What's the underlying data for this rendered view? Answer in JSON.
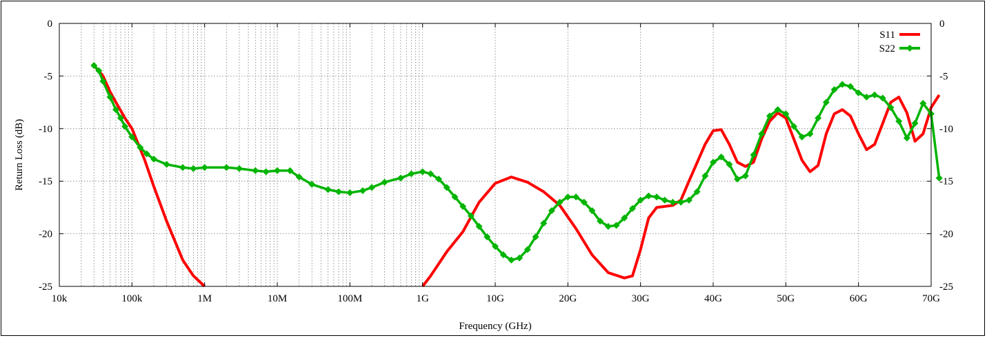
{
  "chart_data": {
    "type": "line",
    "xlabel": "Frequency (GHz)",
    "ylabel": "Return Loss (dB)",
    "ylim": [
      -25,
      0
    ],
    "yticks": [
      0,
      -5,
      -10,
      -15,
      -20,
      -25
    ],
    "x_scale": "log from 10k to 1G, then linear from 1G to 70G",
    "xticks": [
      "10k",
      "100k",
      "1M",
      "10M",
      "100M",
      "1G",
      "10G",
      "20G",
      "30G",
      "40G",
      "50G",
      "60G",
      "70G"
    ],
    "grid": true,
    "legend_position": "top-right",
    "colors": {
      "S11": "#ff0000",
      "S22": "#00b400"
    },
    "series": [
      {
        "name": "S11",
        "marker": "none",
        "segments": [
          [
            [
              "30k",
              -4.0
            ],
            [
              "40k",
              -5.0
            ],
            [
              "50k",
              -6.5
            ],
            [
              "60k",
              -7.5
            ],
            [
              "70k",
              -8.3
            ],
            [
              "80k",
              -9.0
            ],
            [
              "100k",
              -10.0
            ],
            [
              "150k",
              -13.0
            ],
            [
              "200k",
              -15.5
            ],
            [
              "300k",
              -18.8
            ],
            [
              "500k",
              -22.5
            ],
            [
              "700k",
              -24.0
            ],
            [
              "1M",
              -25.0
            ]
          ],
          [
            [
              "1G",
              -25.0
            ],
            [
              "2G",
              -24.0
            ],
            [
              "4G",
              -21.7
            ],
            [
              "6G",
              -19.8
            ],
            [
              "8G",
              -17.0
            ],
            [
              "10G",
              -15.2
            ],
            [
              "12G",
              -14.6
            ],
            [
              "14G",
              -15.1
            ],
            [
              "16G",
              -16.0
            ],
            [
              "18G",
              -17.3
            ],
            [
              "20G",
              -19.5
            ],
            [
              "22G",
              -22.0
            ],
            [
              "24G",
              -23.7
            ],
            [
              "26G",
              -24.2
            ],
            [
              "27G",
              -24.0
            ],
            [
              "28G",
              -21.5
            ],
            [
              "29G",
              -18.5
            ],
            [
              "30G",
              -17.5
            ],
            [
              "32G",
              -17.3
            ],
            [
              "33G",
              -16.8
            ],
            [
              "34G",
              -15.0
            ],
            [
              "36G",
              -11.5
            ],
            [
              "37G",
              -10.2
            ],
            [
              "38G",
              -10.1
            ],
            [
              "39G",
              -11.5
            ],
            [
              "40G",
              -13.2
            ],
            [
              "41G",
              -13.6
            ],
            [
              "42G",
              -13.2
            ],
            [
              "43G",
              -11.0
            ],
            [
              "44G",
              -9.3
            ],
            [
              "45G",
              -8.5
            ],
            [
              "46G",
              -9.0
            ],
            [
              "47G",
              -11.0
            ],
            [
              "48G",
              -13.0
            ],
            [
              "49G",
              -14.1
            ],
            [
              "50G",
              -13.5
            ],
            [
              "51G",
              -10.5
            ],
            [
              "52G",
              -8.6
            ],
            [
              "53G",
              -8.2
            ],
            [
              "54G",
              -8.8
            ],
            [
              "55G",
              -10.5
            ],
            [
              "56G",
              -12.0
            ],
            [
              "57G",
              -11.5
            ],
            [
              "58G",
              -9.5
            ],
            [
              "59G",
              -7.5
            ],
            [
              "60G",
              -7.0
            ],
            [
              "61G",
              -8.5
            ],
            [
              "62G",
              -11.2
            ],
            [
              "63G",
              -10.5
            ],
            [
              "64G",
              -8.0
            ],
            [
              "65G",
              -6.8
            ]
          ]
        ]
      },
      {
        "name": "S22",
        "marker": "diamond",
        "segments": [
          [
            [
              "30k",
              -4.0
            ],
            [
              "35k",
              -4.5
            ],
            [
              "40k",
              -5.5
            ],
            [
              "50k",
              -7.0
            ],
            [
              "60k",
              -8.2
            ],
            [
              "70k",
              -9.0
            ],
            [
              "80k",
              -9.8
            ],
            [
              "100k",
              -10.8
            ],
            [
              "130k",
              -11.8
            ],
            [
              "160k",
              -12.4
            ],
            [
              "200k",
              -12.9
            ],
            [
              "300k",
              -13.4
            ],
            [
              "500k",
              -13.7
            ],
            [
              "700k",
              -13.8
            ],
            [
              "1M",
              -13.7
            ],
            [
              "2M",
              -13.7
            ],
            [
              "3M",
              -13.8
            ],
            [
              "5M",
              -14.0
            ],
            [
              "7M",
              -14.1
            ],
            [
              "10M",
              -14.0
            ],
            [
              "15M",
              -14.0
            ],
            [
              "20M",
              -14.6
            ],
            [
              "30M",
              -15.3
            ],
            [
              "50M",
              -15.8
            ],
            [
              "70M",
              -16.0
            ],
            [
              "100M",
              -16.1
            ],
            [
              "150M",
              -15.9
            ],
            [
              "200M",
              -15.6
            ],
            [
              "300M",
              -15.1
            ],
            [
              "500M",
              -14.7
            ],
            [
              "700M",
              -14.3
            ],
            [
              "1G",
              -14.1
            ],
            [
              "2G",
              -14.3
            ],
            [
              "3G",
              -14.8
            ],
            [
              "4G",
              -15.6
            ],
            [
              "5G",
              -16.5
            ],
            [
              "6G",
              -17.4
            ],
            [
              "7G",
              -18.3
            ],
            [
              "8G",
              -19.3
            ],
            [
              "9G",
              -20.3
            ],
            [
              "10G",
              -21.2
            ],
            [
              "11G",
              -22.0
            ],
            [
              "12G",
              -22.5
            ],
            [
              "13G",
              -22.3
            ],
            [
              "14G",
              -21.5
            ],
            [
              "15G",
              -20.3
            ],
            [
              "16G",
              -19.0
            ],
            [
              "17G",
              -17.8
            ],
            [
              "18G",
              -17.0
            ],
            [
              "19G",
              -16.5
            ],
            [
              "20G",
              -16.5
            ],
            [
              "21G",
              -17.0
            ],
            [
              "22G",
              -17.8
            ],
            [
              "23G",
              -18.8
            ],
            [
              "24G",
              -19.3
            ],
            [
              "25G",
              -19.2
            ],
            [
              "26G",
              -18.5
            ],
            [
              "27G",
              -17.6
            ],
            [
              "28G",
              -16.8
            ],
            [
              "29G",
              -16.4
            ],
            [
              "30G",
              -16.5
            ],
            [
              "31G",
              -16.8
            ],
            [
              "32G",
              -17.0
            ],
            [
              "33G",
              -17.0
            ],
            [
              "34G",
              -16.8
            ],
            [
              "35G",
              -16.0
            ],
            [
              "36G",
              -14.5
            ],
            [
              "37G",
              -13.2
            ],
            [
              "38G",
              -12.7
            ],
            [
              "39G",
              -13.4
            ],
            [
              "40G",
              -14.8
            ],
            [
              "41G",
              -14.5
            ],
            [
              "42G",
              -12.5
            ],
            [
              "43G",
              -10.5
            ],
            [
              "44G",
              -8.8
            ],
            [
              "45G",
              -8.2
            ],
            [
              "46G",
              -8.6
            ],
            [
              "47G",
              -9.8
            ],
            [
              "48G",
              -10.8
            ],
            [
              "49G",
              -10.5
            ],
            [
              "50G",
              -9.0
            ],
            [
              "51G",
              -7.5
            ],
            [
              "52G",
              -6.3
            ],
            [
              "53G",
              -5.8
            ],
            [
              "54G",
              -6.0
            ],
            [
              "55G",
              -6.6
            ],
            [
              "56G",
              -7.0
            ],
            [
              "57G",
              -6.8
            ],
            [
              "58G",
              -7.1
            ],
            [
              "59G",
              -8.0
            ],
            [
              "60G",
              -9.3
            ],
            [
              "61G",
              -10.9
            ],
            [
              "62G",
              -9.5
            ],
            [
              "63G",
              -7.6
            ],
            [
              "64G",
              -8.6
            ],
            [
              "65G",
              -14.7
            ]
          ]
        ]
      }
    ]
  }
}
